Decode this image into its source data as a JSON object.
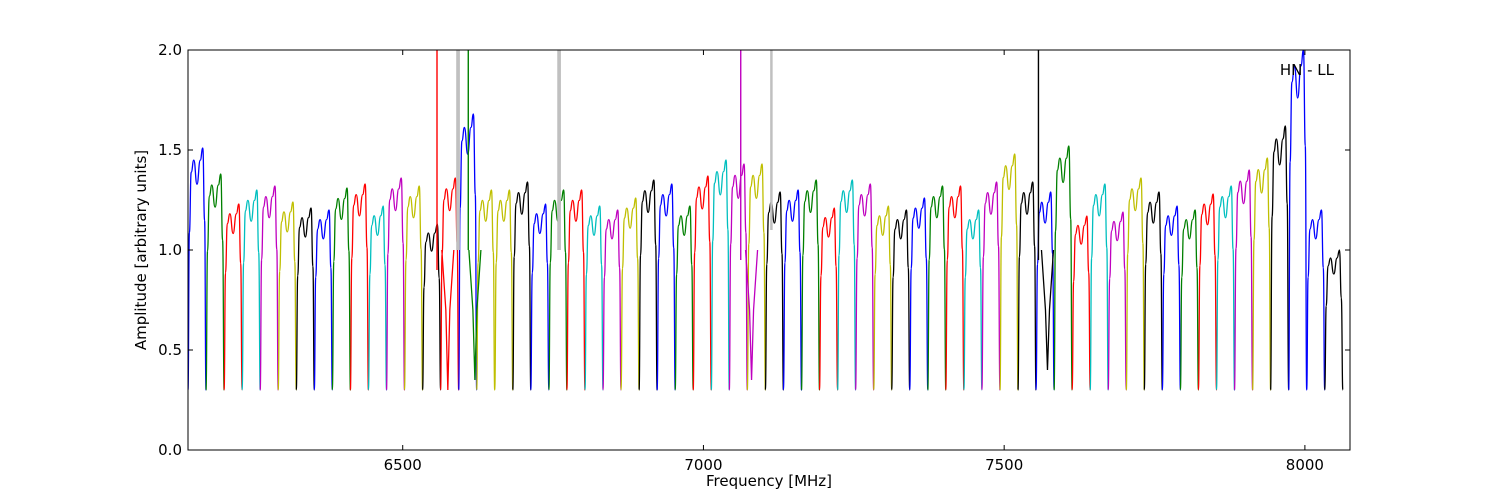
{
  "chart_data": {
    "type": "line",
    "title": "",
    "annotation": "HN - LL",
    "xlabel": "Frequency [MHz]",
    "ylabel": "Amplitude [arbitrary units]",
    "xlim": [
      6143,
      8075
    ],
    "ylim": [
      0.0,
      2.0
    ],
    "xticks": [
      6500,
      7000,
      7500,
      8000
    ],
    "xtick_labels": [
      "6500",
      "7000",
      "7500",
      "8000"
    ],
    "yticks": [
      0.0,
      0.5,
      1.0,
      1.5,
      2.0
    ],
    "ytick_labels": [
      "0.0",
      "0.5",
      "1.0",
      "1.5",
      "2.0"
    ],
    "grid": false,
    "legend": "none",
    "colors": {
      "blue": "#0000ff",
      "green": "#008000",
      "red": "#ff0000",
      "cyan": "#00bfbf",
      "magenta": "#bf00bf",
      "olive": "#bfbf00",
      "black": "#000000",
      "flagged": "#c0c0c0"
    },
    "channel_pattern": {
      "sample_points_x_offset_fraction": [
        0.0,
        0.08,
        0.18,
        0.32,
        0.5,
        0.68,
        0.82,
        0.92,
        1.0
      ],
      "sample_points_y": [
        0.3,
        0.9,
        1.15,
        1.2,
        1.1,
        1.2,
        1.25,
        0.95,
        0.3
      ]
    },
    "channels": [
      {
        "x_start": 6143,
        "x_end": 6173,
        "color": "blue",
        "peak": 1.51
      },
      {
        "x_start": 6173,
        "x_end": 6203,
        "color": "green",
        "peak": 1.38
      },
      {
        "x_start": 6203,
        "x_end": 6233,
        "color": "red",
        "peak": 1.23
      },
      {
        "x_start": 6233,
        "x_end": 6263,
        "color": "cyan",
        "peak": 1.3
      },
      {
        "x_start": 6263,
        "x_end": 6293,
        "color": "magenta",
        "peak": 1.32
      },
      {
        "x_start": 6293,
        "x_end": 6323,
        "color": "olive",
        "peak": 1.24
      },
      {
        "x_start": 6323,
        "x_end": 6353,
        "color": "black",
        "peak": 1.21
      },
      {
        "x_start": 6353,
        "x_end": 6383,
        "color": "blue",
        "peak": 1.2
      },
      {
        "x_start": 6383,
        "x_end": 6413,
        "color": "green",
        "peak": 1.31
      },
      {
        "x_start": 6413,
        "x_end": 6443,
        "color": "red",
        "peak": 1.33
      },
      {
        "x_start": 6443,
        "x_end": 6473,
        "color": "cyan",
        "peak": 1.22
      },
      {
        "x_start": 6473,
        "x_end": 6503,
        "color": "magenta",
        "peak": 1.36
      },
      {
        "x_start": 6503,
        "x_end": 6533,
        "color": "olive",
        "peak": 1.32
      },
      {
        "x_start": 6533,
        "x_end": 6563,
        "color": "black",
        "peak": 1.13
      },
      {
        "x_start": 6563,
        "x_end": 6593,
        "color": "red",
        "peak": 1.36
      },
      {
        "x_start": 6593,
        "x_end": 6623,
        "color": "blue",
        "peak": 1.68
      },
      {
        "x_start": 6623,
        "x_end": 6653,
        "color": "olive",
        "peak": 1.3
      },
      {
        "x_start": 6653,
        "x_end": 6683,
        "color": "olive",
        "peak": 1.3
      },
      {
        "x_start": 6683,
        "x_end": 6713,
        "color": "black",
        "peak": 1.34
      },
      {
        "x_start": 6713,
        "x_end": 6743,
        "color": "blue",
        "peak": 1.23
      },
      {
        "x_start": 6743,
        "x_end": 6773,
        "color": "green",
        "peak": 1.3
      },
      {
        "x_start": 6773,
        "x_end": 6803,
        "color": "red",
        "peak": 1.3
      },
      {
        "x_start": 6803,
        "x_end": 6833,
        "color": "cyan",
        "peak": 1.22
      },
      {
        "x_start": 6833,
        "x_end": 6863,
        "color": "magenta",
        "peak": 1.2
      },
      {
        "x_start": 6863,
        "x_end": 6893,
        "color": "olive",
        "peak": 1.26
      },
      {
        "x_start": 6893,
        "x_end": 6923,
        "color": "black",
        "peak": 1.35
      },
      {
        "x_start": 6923,
        "x_end": 6953,
        "color": "blue",
        "peak": 1.33
      },
      {
        "x_start": 6953,
        "x_end": 6983,
        "color": "green",
        "peak": 1.22
      },
      {
        "x_start": 6983,
        "x_end": 7013,
        "color": "red",
        "peak": 1.37
      },
      {
        "x_start": 7013,
        "x_end": 7043,
        "color": "cyan",
        "peak": 1.45
      },
      {
        "x_start": 7043,
        "x_end": 7073,
        "color": "magenta",
        "peak": 1.43
      },
      {
        "x_start": 7073,
        "x_end": 7103,
        "color": "olive",
        "peak": 1.43
      },
      {
        "x_start": 7103,
        "x_end": 7133,
        "color": "black",
        "peak": 1.29
      },
      {
        "x_start": 7133,
        "x_end": 7163,
        "color": "blue",
        "peak": 1.3
      },
      {
        "x_start": 7163,
        "x_end": 7193,
        "color": "green",
        "peak": 1.35
      },
      {
        "x_start": 7193,
        "x_end": 7223,
        "color": "red",
        "peak": 1.21
      },
      {
        "x_start": 7223,
        "x_end": 7253,
        "color": "cyan",
        "peak": 1.35
      },
      {
        "x_start": 7253,
        "x_end": 7283,
        "color": "magenta",
        "peak": 1.33
      },
      {
        "x_start": 7283,
        "x_end": 7313,
        "color": "olive",
        "peak": 1.22
      },
      {
        "x_start": 7313,
        "x_end": 7343,
        "color": "black",
        "peak": 1.2
      },
      {
        "x_start": 7343,
        "x_end": 7373,
        "color": "blue",
        "peak": 1.26
      },
      {
        "x_start": 7373,
        "x_end": 7403,
        "color": "green",
        "peak": 1.32
      },
      {
        "x_start": 7403,
        "x_end": 7433,
        "color": "red",
        "peak": 1.32
      },
      {
        "x_start": 7433,
        "x_end": 7463,
        "color": "cyan",
        "peak": 1.2
      },
      {
        "x_start": 7463,
        "x_end": 7493,
        "color": "magenta",
        "peak": 1.34
      },
      {
        "x_start": 7493,
        "x_end": 7523,
        "color": "olive",
        "peak": 1.48
      },
      {
        "x_start": 7523,
        "x_end": 7553,
        "color": "black",
        "peak": 1.34
      },
      {
        "x_start": 7553,
        "x_end": 7583,
        "color": "blue",
        "peak": 1.29
      },
      {
        "x_start": 7583,
        "x_end": 7613,
        "color": "green",
        "peak": 1.52
      },
      {
        "x_start": 7613,
        "x_end": 7643,
        "color": "red",
        "peak": 1.17
      },
      {
        "x_start": 7643,
        "x_end": 7673,
        "color": "cyan",
        "peak": 1.33
      },
      {
        "x_start": 7673,
        "x_end": 7703,
        "color": "magenta",
        "peak": 1.19
      },
      {
        "x_start": 7703,
        "x_end": 7733,
        "color": "olive",
        "peak": 1.36
      },
      {
        "x_start": 7733,
        "x_end": 7763,
        "color": "black",
        "peak": 1.29
      },
      {
        "x_start": 7763,
        "x_end": 7793,
        "color": "blue",
        "peak": 1.22
      },
      {
        "x_start": 7793,
        "x_end": 7823,
        "color": "green",
        "peak": 1.2
      },
      {
        "x_start": 7823,
        "x_end": 7853,
        "color": "red",
        "peak": 1.28
      },
      {
        "x_start": 7853,
        "x_end": 7883,
        "color": "cyan",
        "peak": 1.32
      },
      {
        "x_start": 7883,
        "x_end": 7913,
        "color": "magenta",
        "peak": 1.4
      },
      {
        "x_start": 7913,
        "x_end": 7943,
        "color": "olive",
        "peak": 1.46
      },
      {
        "x_start": 7943,
        "x_end": 7973,
        "color": "black",
        "peak": 1.62
      },
      {
        "x_start": 7973,
        "x_end": 8003,
        "color": "blue",
        "peak": 2.0
      },
      {
        "x_start": 8003,
        "x_end": 8033,
        "color": "blue",
        "peak": 1.2
      },
      {
        "x_start": 8033,
        "x_end": 8063,
        "color": "black",
        "peak": 1.0
      }
    ],
    "spikes": [
      {
        "x": 6557,
        "y_from": 0.9,
        "y_to": 2.0,
        "color": "red"
      },
      {
        "x": 6591,
        "y_from": 1.0,
        "y_to": 2.0,
        "color": "flagged"
      },
      {
        "x": 6593,
        "y_from": 1.0,
        "y_to": 2.0,
        "color": "flagged"
      },
      {
        "x": 6609,
        "y_from": 1.0,
        "y_to": 2.0,
        "color": "green"
      },
      {
        "x": 6759,
        "y_from": 1.0,
        "y_to": 2.0,
        "color": "flagged"
      },
      {
        "x": 6761,
        "y_from": 1.0,
        "y_to": 2.0,
        "color": "flagged"
      },
      {
        "x": 7062,
        "y_from": 0.95,
        "y_to": 2.0,
        "color": "magenta"
      },
      {
        "x": 7113,
        "y_from": 1.1,
        "y_to": 2.0,
        "color": "flagged"
      },
      {
        "x": 7557,
        "y_from": 0.95,
        "y_to": 2.0,
        "color": "black"
      }
    ],
    "dips": [
      {
        "x": 6575,
        "y": 0.3,
        "color": "red"
      },
      {
        "x": 6620,
        "y": 0.35,
        "color": "green"
      },
      {
        "x": 7080,
        "y": 0.35,
        "color": "magenta"
      },
      {
        "x": 7572,
        "y": 0.4,
        "color": "black"
      }
    ]
  }
}
